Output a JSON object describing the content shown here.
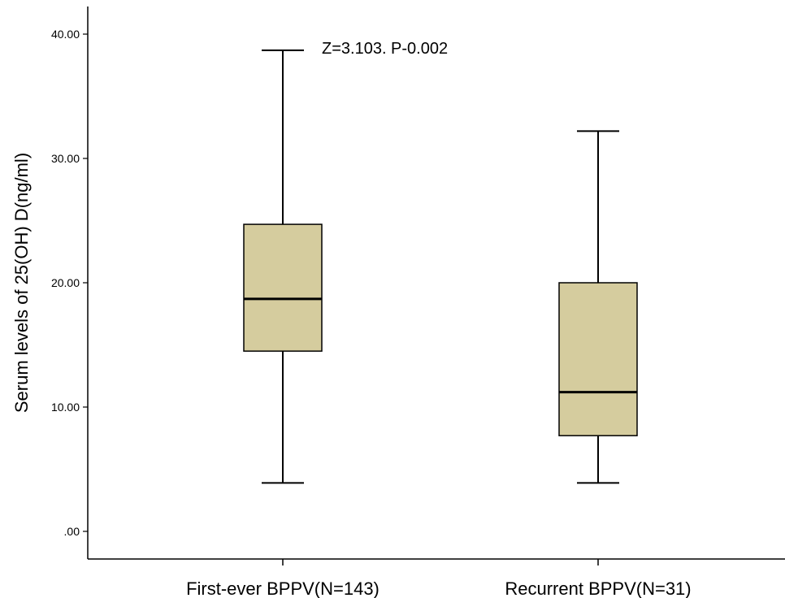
{
  "chart_data": {
    "type": "boxplot",
    "ylabel": "Serum levels of 25(OH) D(ng/ml)",
    "xlabel": "",
    "ylim": [
      0,
      44
    ],
    "y_ticks": [
      ".00",
      "10.00",
      "20.00",
      "30.00",
      "40.00"
    ],
    "y_tick_values": [
      0,
      10,
      20,
      30,
      40
    ],
    "annotation": "Z=3.103. P-0.002",
    "box_color": "#d5cc9e",
    "categories": [
      "First-ever BPPV(N=143)",
      "Recurrent BPPV(N=31)"
    ],
    "boxes": [
      {
        "category": "First-ever BPPV(N=143)",
        "min": 3.9,
        "q1": 14.5,
        "median": 18.7,
        "q3": 24.7,
        "max": 38.7
      },
      {
        "category": "Recurrent BPPV(N=31)",
        "min": 3.9,
        "q1": 7.7,
        "median": 11.2,
        "q3": 20.0,
        "max": 32.2
      }
    ]
  }
}
